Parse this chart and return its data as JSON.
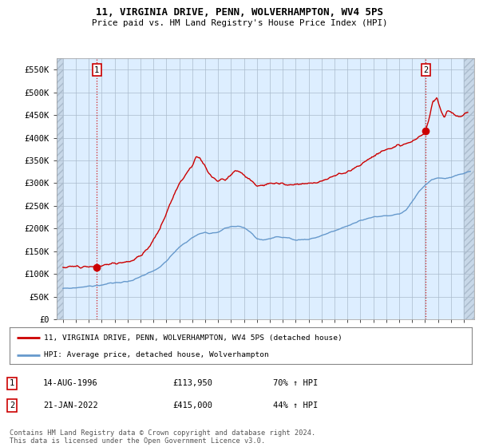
{
  "title": "11, VIRGINIA DRIVE, PENN, WOLVERHAMPTON, WV4 5PS",
  "subtitle": "Price paid vs. HM Land Registry's House Price Index (HPI)",
  "ylim": [
    0,
    575000
  ],
  "xlim_start": 1993.5,
  "xlim_end": 2025.8,
  "yticks": [
    0,
    50000,
    100000,
    150000,
    200000,
    250000,
    300000,
    350000,
    400000,
    450000,
    500000,
    550000
  ],
  "ytick_labels": [
    "£0",
    "£50K",
    "£100K",
    "£150K",
    "£200K",
    "£250K",
    "£300K",
    "£350K",
    "£400K",
    "£450K",
    "£500K",
    "£550K"
  ],
  "xticks": [
    1994,
    1995,
    1996,
    1997,
    1998,
    1999,
    2000,
    2001,
    2002,
    2003,
    2004,
    2005,
    2006,
    2007,
    2008,
    2009,
    2010,
    2011,
    2012,
    2013,
    2014,
    2015,
    2016,
    2017,
    2018,
    2019,
    2020,
    2021,
    2022,
    2023,
    2024,
    2025
  ],
  "line1_color": "#cc0000",
  "line2_color": "#6699cc",
  "point1_date": 1996.62,
  "point1_price": 113950,
  "point2_date": 2022.05,
  "point2_price": 415000,
  "sale1_label": "1",
  "sale2_label": "2",
  "legend_line1": "11, VIRGINIA DRIVE, PENN, WOLVERHAMPTON, WV4 5PS (detached house)",
  "legend_line2": "HPI: Average price, detached house, Wolverhampton",
  "table_row1_num": "1",
  "table_row1_date": "14-AUG-1996",
  "table_row1_price": "£113,950",
  "table_row1_hpi": "70% ↑ HPI",
  "table_row2_num": "2",
  "table_row2_date": "21-JAN-2022",
  "table_row2_price": "£415,000",
  "table_row2_hpi": "44% ↑ HPI",
  "footnote": "Contains HM Land Registry data © Crown copyright and database right 2024.\nThis data is licensed under the Open Government Licence v3.0.",
  "bg_color": "#ddeeff",
  "hatch_bg_color": "#c8d8e8"
}
